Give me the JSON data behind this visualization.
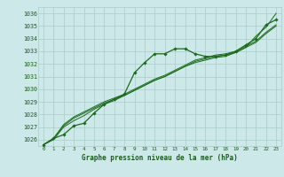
{
  "xlabel": "Graphe pression niveau de la mer (hPa)",
  "bg_color": "#cce8e8",
  "grid_color": "#aacccc",
  "line_color": "#1a6b1a",
  "text_color": "#1a5c1a",
  "xlim": [
    -0.5,
    23.5
  ],
  "ylim": [
    1025.5,
    1036.5
  ],
  "yticks": [
    1026,
    1027,
    1028,
    1029,
    1030,
    1031,
    1032,
    1033,
    1034,
    1035,
    1036
  ],
  "xticks": [
    0,
    1,
    2,
    3,
    4,
    5,
    6,
    7,
    8,
    9,
    10,
    11,
    12,
    13,
    14,
    15,
    16,
    17,
    18,
    19,
    20,
    21,
    22,
    23
  ],
  "series1_x": [
    0,
    1,
    2,
    3,
    4,
    5,
    6,
    7,
    8,
    9,
    10,
    11,
    12,
    13,
    14,
    15,
    16,
    17,
    18,
    19,
    20,
    21,
    22,
    23
  ],
  "series1_y": [
    1025.6,
    1026.1,
    1026.4,
    1027.1,
    1027.3,
    1028.1,
    1028.8,
    1029.2,
    1029.6,
    1031.3,
    1032.1,
    1032.8,
    1032.8,
    1033.2,
    1033.2,
    1032.8,
    1032.6,
    1032.6,
    1032.7,
    1033.0,
    1033.5,
    1034.0,
    1035.1,
    1035.5
  ],
  "series2_x": [
    0,
    1,
    2,
    3,
    4,
    5,
    6,
    7,
    8,
    9,
    10,
    11,
    12,
    13,
    14,
    15,
    16,
    17,
    18,
    19,
    20,
    21,
    22,
    23
  ],
  "series2_y": [
    1025.6,
    1026.1,
    1027.2,
    1027.8,
    1028.2,
    1028.6,
    1029.0,
    1029.3,
    1029.6,
    1030.0,
    1030.4,
    1030.8,
    1031.1,
    1031.5,
    1031.9,
    1032.3,
    1032.5,
    1032.7,
    1032.8,
    1033.0,
    1033.4,
    1033.8,
    1034.5,
    1035.1
  ],
  "series3_x": [
    0,
    1,
    2,
    3,
    4,
    5,
    6,
    7,
    8,
    9,
    10,
    11,
    12,
    13,
    14,
    15,
    16,
    17,
    18,
    19,
    20,
    21,
    22,
    23
  ],
  "series3_y": [
    1025.6,
    1026.0,
    1027.0,
    1027.5,
    1027.9,
    1028.4,
    1028.8,
    1029.1,
    1029.5,
    1029.9,
    1030.3,
    1030.7,
    1031.0,
    1031.4,
    1031.8,
    1032.1,
    1032.3,
    1032.5,
    1032.6,
    1032.9,
    1033.3,
    1033.7,
    1034.4,
    1035.0
  ],
  "series4_x": [
    0,
    1,
    2,
    3,
    4,
    5,
    6,
    7,
    8,
    9,
    10,
    11,
    12,
    13,
    14,
    15,
    16,
    17,
    18,
    19,
    20,
    21,
    22,
    23
  ],
  "series4_y": [
    1025.6,
    1026.1,
    1027.1,
    1027.7,
    1028.1,
    1028.5,
    1028.9,
    1029.2,
    1029.5,
    1029.9,
    1030.3,
    1030.7,
    1031.0,
    1031.4,
    1031.8,
    1032.2,
    1032.4,
    1032.6,
    1032.7,
    1032.9,
    1033.3,
    1034.2,
    1034.9,
    1036.0
  ]
}
